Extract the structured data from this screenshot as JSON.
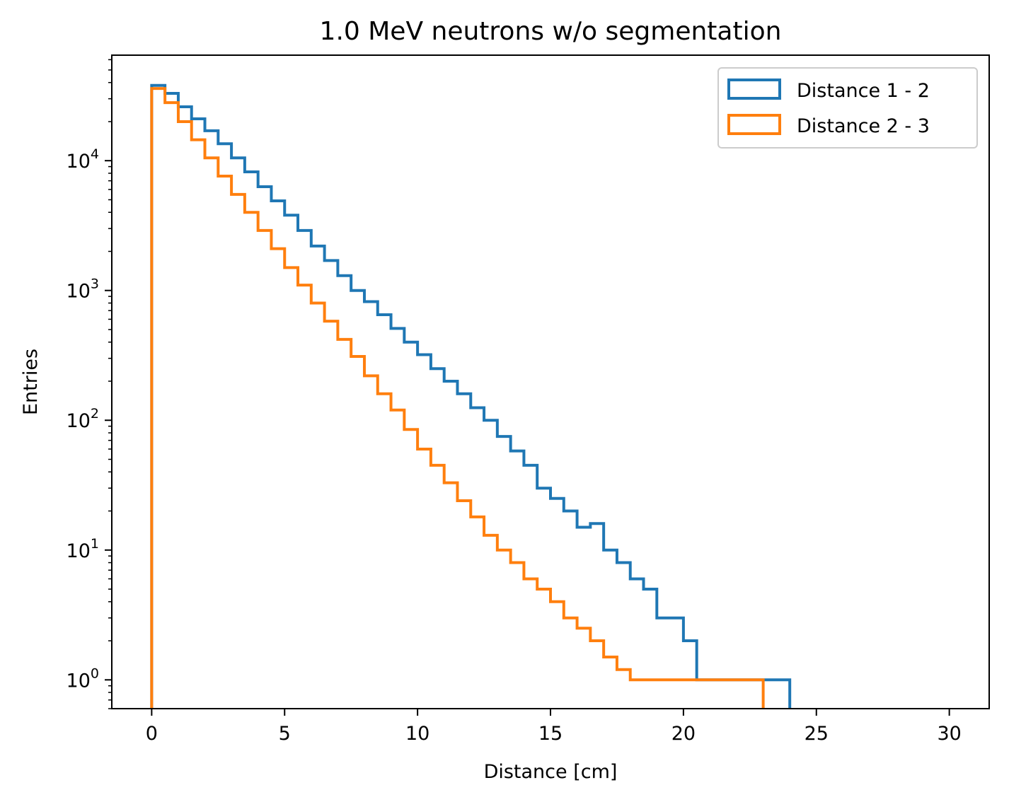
{
  "chart_data": {
    "type": "histogram",
    "title": "1.0 MeV neutrons w/o segmentation",
    "xlabel": "Distance [cm]",
    "ylabel": "Entries",
    "xlim": [
      -1.5,
      31.5
    ],
    "ylim": [
      0.6,
      65000
    ],
    "yscale": "log",
    "grid": false,
    "legend_position": "top-right",
    "x_ticks": [
      "0",
      "5",
      "10",
      "15",
      "20",
      "25",
      "30"
    ],
    "y_ticks": [
      {
        "base": "10",
        "exp": "0"
      },
      {
        "base": "10",
        "exp": "1"
      },
      {
        "base": "10",
        "exp": "2"
      },
      {
        "base": "10",
        "exp": "3"
      },
      {
        "base": "10",
        "exp": "4"
      }
    ],
    "series": [
      {
        "name": "Distance 1 - 2",
        "color": "#1f77b4",
        "bin_edges": [
          0,
          0.5,
          1,
          1.5,
          2,
          2.5,
          3,
          3.5,
          4,
          4.5,
          5,
          5.5,
          6,
          6.5,
          7,
          7.5,
          8,
          8.5,
          9,
          9.5,
          10,
          10.5,
          11,
          11.5,
          12,
          12.5,
          13,
          13.5,
          14,
          14.5,
          15,
          15.5,
          16,
          16.5,
          17,
          17.5,
          18,
          18.5,
          19,
          19.5,
          20,
          20.5,
          21,
          21.5,
          22,
          22.5,
          23,
          23.5,
          24
        ],
        "counts": [
          38000,
          33000,
          26000,
          21000,
          17000,
          13500,
          10500,
          8200,
          6300,
          4900,
          3800,
          2900,
          2200,
          1700,
          1300,
          1000,
          820,
          650,
          510,
          400,
          320,
          250,
          200,
          160,
          125,
          100,
          75,
          58,
          45,
          30,
          25,
          20,
          15,
          16,
          10,
          8,
          6,
          5,
          3,
          3,
          2,
          1,
          1,
          1,
          1,
          1,
          1,
          1
        ]
      },
      {
        "name": "Distance 2 - 3",
        "color": "#ff7f0e",
        "bin_edges": [
          0,
          0.5,
          1,
          1.5,
          2,
          2.5,
          3,
          3.5,
          4,
          4.5,
          5,
          5.5,
          6,
          6.5,
          7,
          7.5,
          8,
          8.5,
          9,
          9.5,
          10,
          10.5,
          11,
          11.5,
          12,
          12.5,
          13,
          13.5,
          14,
          14.5,
          15,
          15.5,
          16,
          16.5,
          17,
          17.5,
          18,
          18.5,
          19,
          19.5,
          20,
          20.5,
          21,
          21.5,
          22,
          22.5,
          23
        ],
        "counts": [
          36000,
          28000,
          20000,
          14500,
          10500,
          7600,
          5500,
          4000,
          2900,
          2100,
          1500,
          1100,
          800,
          580,
          420,
          310,
          220,
          160,
          120,
          85,
          60,
          45,
          33,
          24,
          18,
          13,
          10,
          8,
          6,
          5,
          4,
          3,
          2.5,
          2,
          1.5,
          1.2,
          1,
          1,
          1,
          1,
          1,
          1,
          1,
          1,
          1,
          1
        ]
      }
    ]
  }
}
